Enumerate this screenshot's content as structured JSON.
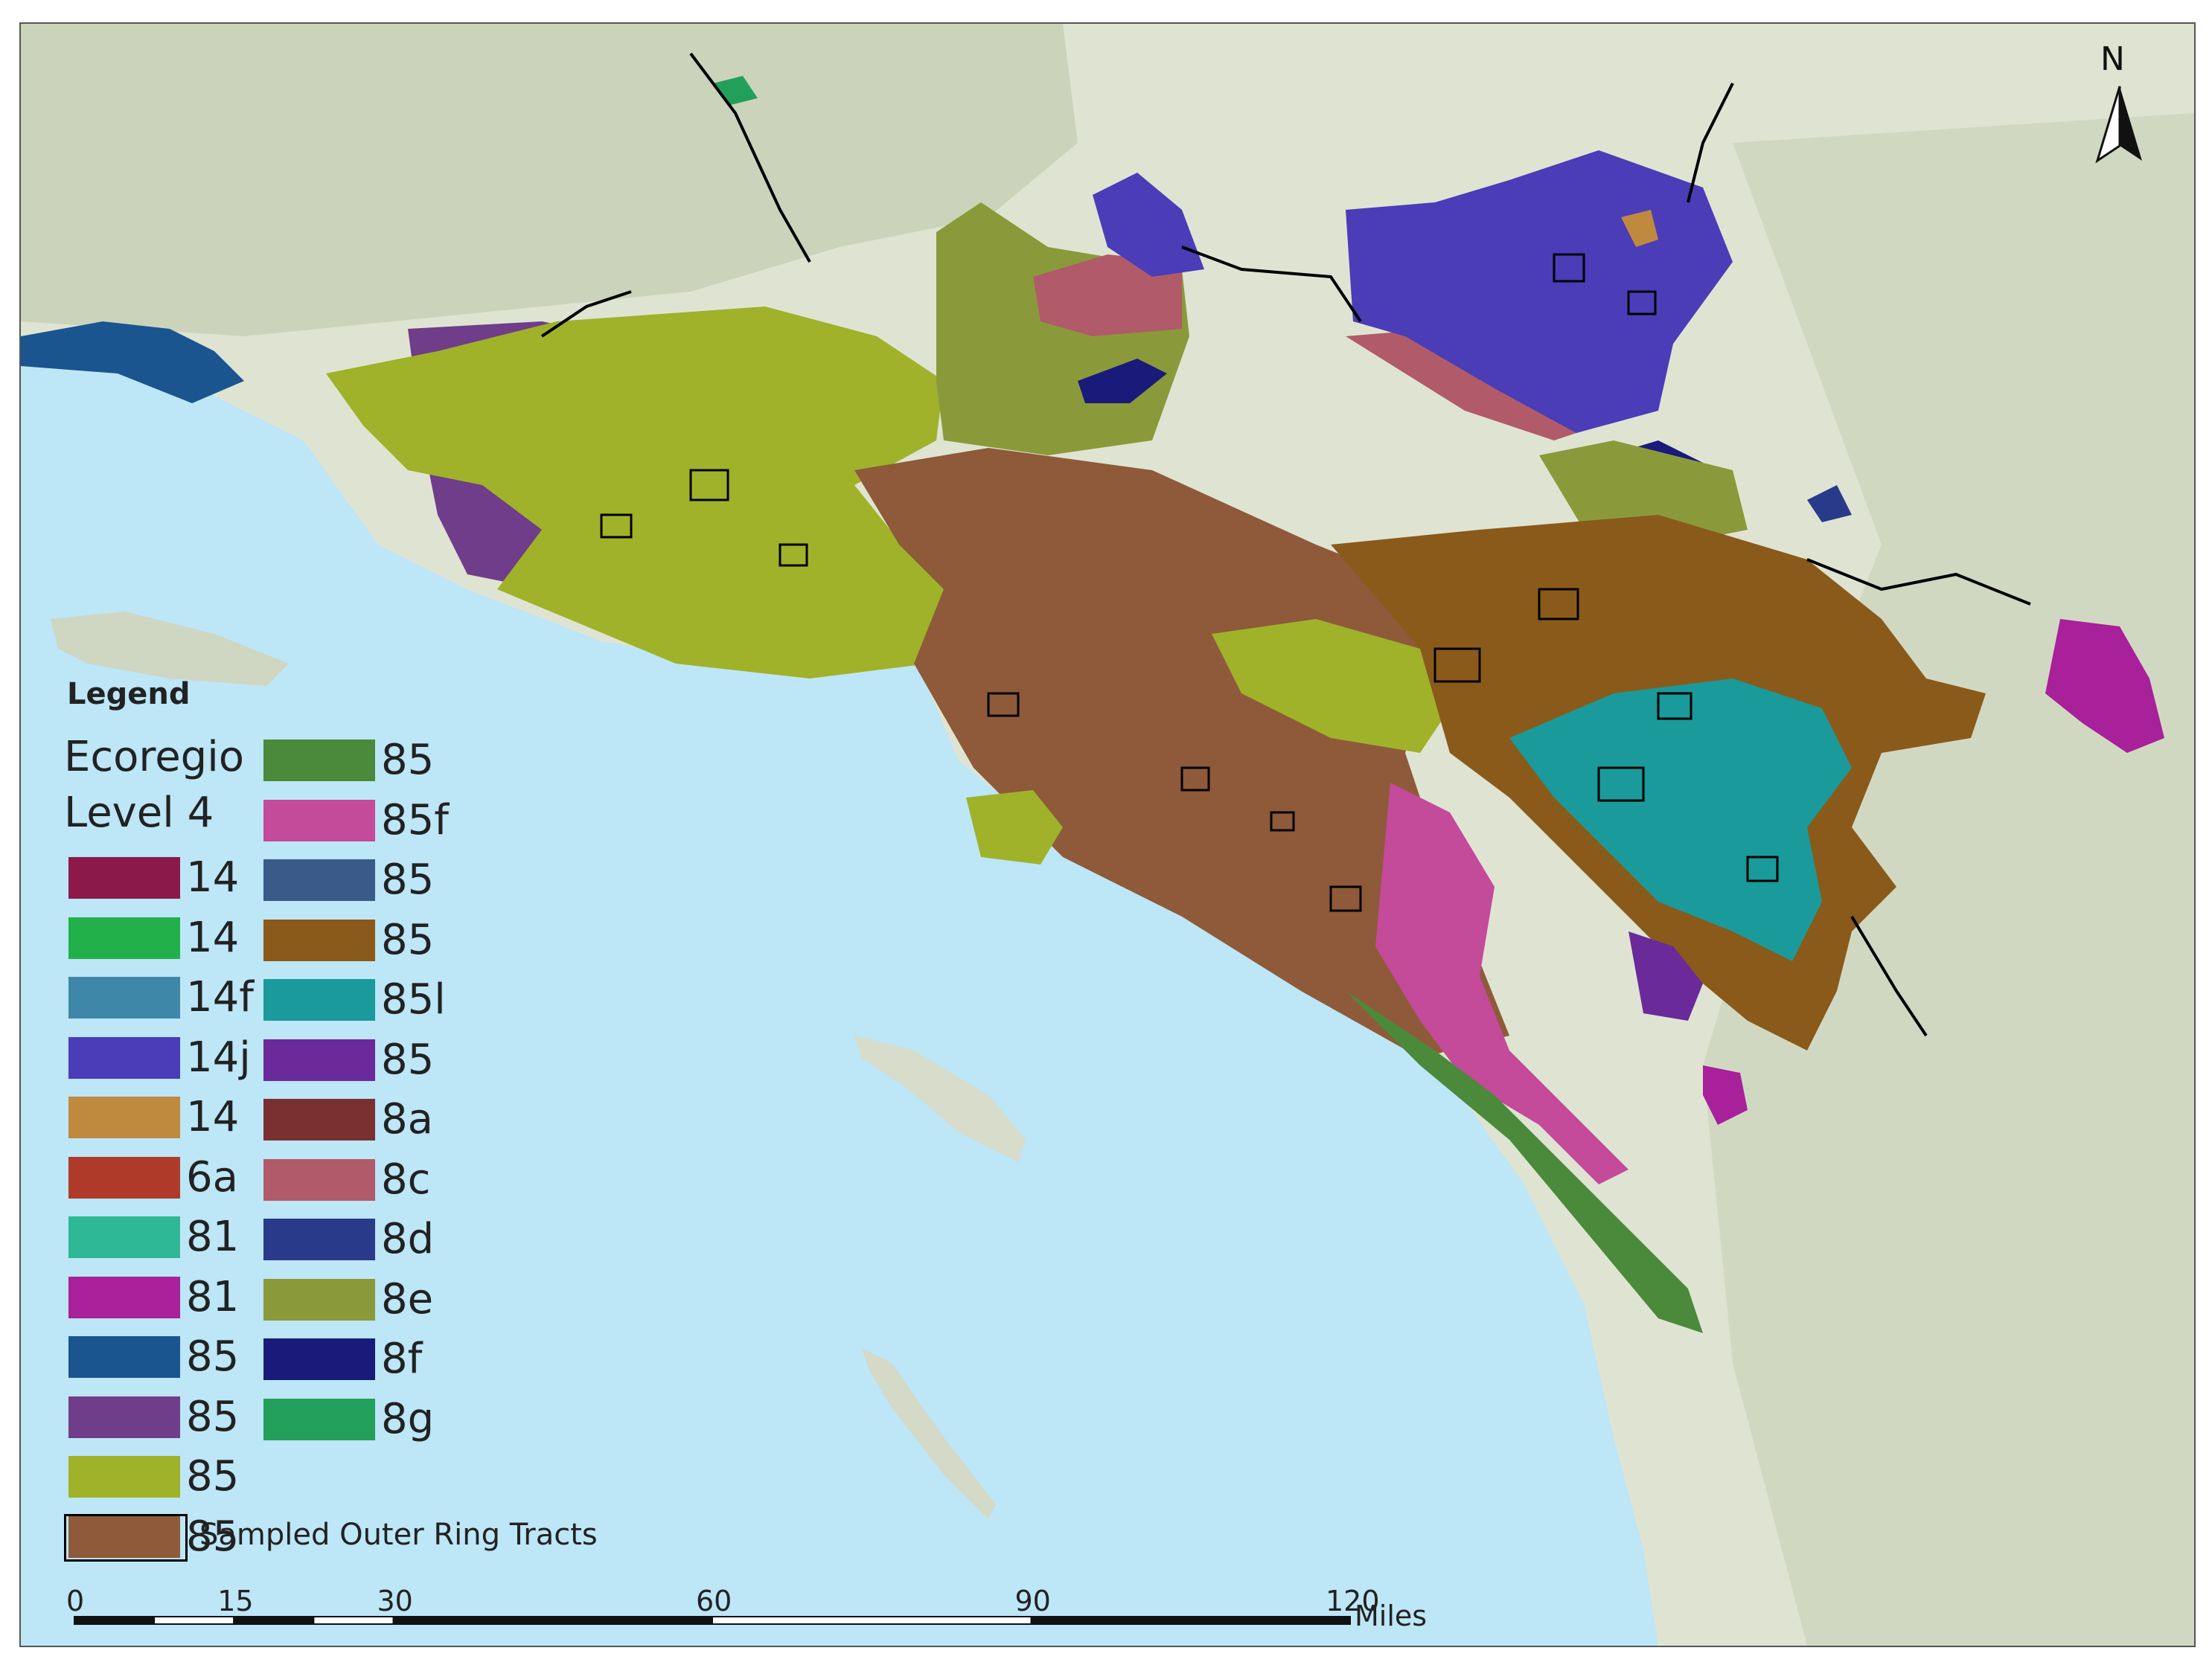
{
  "legend": {
    "title": "Legend",
    "heading_line1": "Ecoregio",
    "heading_line2": "Level 4",
    "items": [
      {
        "label": "14",
        "color": "#8b1a4a"
      },
      {
        "label": "14",
        "color": "#22b04a"
      },
      {
        "label": "14f",
        "color": "#3f87a8"
      },
      {
        "label": "14j",
        "color": "#4b3cb8"
      },
      {
        "label": "14",
        "color": "#c08a3e"
      },
      {
        "label": "6a",
        "color": "#b03a2a"
      },
      {
        "label": "81",
        "color": "#2fb896"
      },
      {
        "label": "81",
        "color": "#a8209a"
      },
      {
        "label": "85",
        "color": "#1a5590"
      },
      {
        "label": "85",
        "color": "#6f3d8a"
      },
      {
        "label": "85",
        "color": "#9fb22a"
      },
      {
        "label": "85",
        "color": "#8e5a3a"
      },
      {
        "label": "85",
        "color": "#4b8a3a"
      },
      {
        "label": "85f",
        "color": "#c44a9a"
      },
      {
        "label": "85",
        "color": "#3a5a8a"
      },
      {
        "label": "85",
        "color": "#8a5a1a"
      },
      {
        "label": "85l",
        "color": "#1a9a9a"
      },
      {
        "label": "85",
        "color": "#6a2a9a"
      },
      {
        "label": "8a",
        "color": "#7a3030"
      },
      {
        "label": "8c",
        "color": "#b05a6a"
      },
      {
        "label": "8d",
        "color": "#2a3a8a"
      },
      {
        "label": "8e",
        "color": "#8a9a3a"
      },
      {
        "label": "8f",
        "color": "#1a1a7a"
      },
      {
        "label": "8g",
        "color": "#22a05a"
      }
    ],
    "tracts_label": "Sampled Outer Ring Tracts"
  },
  "scale_bar": {
    "ticks": [
      "0",
      "15",
      "30",
      "60",
      "90",
      "120"
    ],
    "units": "Miles"
  },
  "north_arrow": {
    "letter": "N",
    "icon": "north-arrow-icon"
  },
  "colors": {
    "ocean": "#bde6f7",
    "land": "#dfe6d3",
    "terrain": "#c8d2b8"
  }
}
